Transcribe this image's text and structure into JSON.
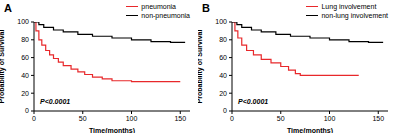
{
  "chart_data": [
    {
      "type": "line",
      "title": "A",
      "line_style": "step",
      "legend": "upper right",
      "x_label": "Time(months)",
      "y_label": "Probability of Survival",
      "xlim": [
        0,
        160
      ],
      "xticks": [
        0,
        50,
        100,
        150
      ],
      "ylim": [
        0,
        100
      ],
      "yticks": [
        0,
        20,
        40,
        60,
        80,
        100
      ],
      "annotations": [
        "P<0.0001"
      ],
      "series": [
        {
          "name": "pneumonia",
          "color": "#e8282b",
          "x": [
            0,
            2,
            5,
            8,
            12,
            16,
            20,
            25,
            30,
            38,
            45,
            52,
            60,
            70,
            80,
            100,
            130,
            150
          ],
          "values": [
            100,
            90,
            80,
            74,
            68,
            63,
            59,
            55,
            51,
            47,
            44,
            41,
            38,
            36,
            34,
            33,
            33,
            33
          ]
        },
        {
          "name": "non-pneumonia",
          "color": "#000000",
          "x": [
            0,
            5,
            10,
            20,
            30,
            45,
            60,
            80,
            100,
            120,
            140,
            155
          ],
          "values": [
            100,
            97,
            94,
            91,
            89,
            86,
            84,
            82,
            80,
            78,
            77,
            77
          ]
        }
      ]
    },
    {
      "type": "line",
      "title": "B",
      "line_style": "step",
      "legend": "upper right",
      "x_label": "Time(months)",
      "y_label": "Probability of Survival",
      "xlim": [
        0,
        160
      ],
      "xticks": [
        0,
        50,
        100,
        150
      ],
      "ylim": [
        0,
        100
      ],
      "yticks": [
        0,
        20,
        40,
        60,
        80,
        100
      ],
      "annotations": [
        "P<0.0001"
      ],
      "series": [
        {
          "name": "Lung involvement",
          "color": "#e8282b",
          "x": [
            0,
            3,
            6,
            10,
            15,
            22,
            30,
            40,
            50,
            58,
            65,
            70,
            100,
            130
          ],
          "values": [
            100,
            90,
            82,
            74,
            68,
            63,
            58,
            54,
            50,
            46,
            42,
            40,
            40,
            40
          ]
        },
        {
          "name": "non-lung involvement",
          "color": "#000000",
          "x": [
            0,
            5,
            10,
            20,
            30,
            45,
            60,
            80,
            100,
            120,
            140,
            155
          ],
          "values": [
            100,
            97,
            94,
            91,
            89,
            86,
            84,
            82,
            80,
            78,
            77,
            77
          ]
        }
      ]
    }
  ]
}
